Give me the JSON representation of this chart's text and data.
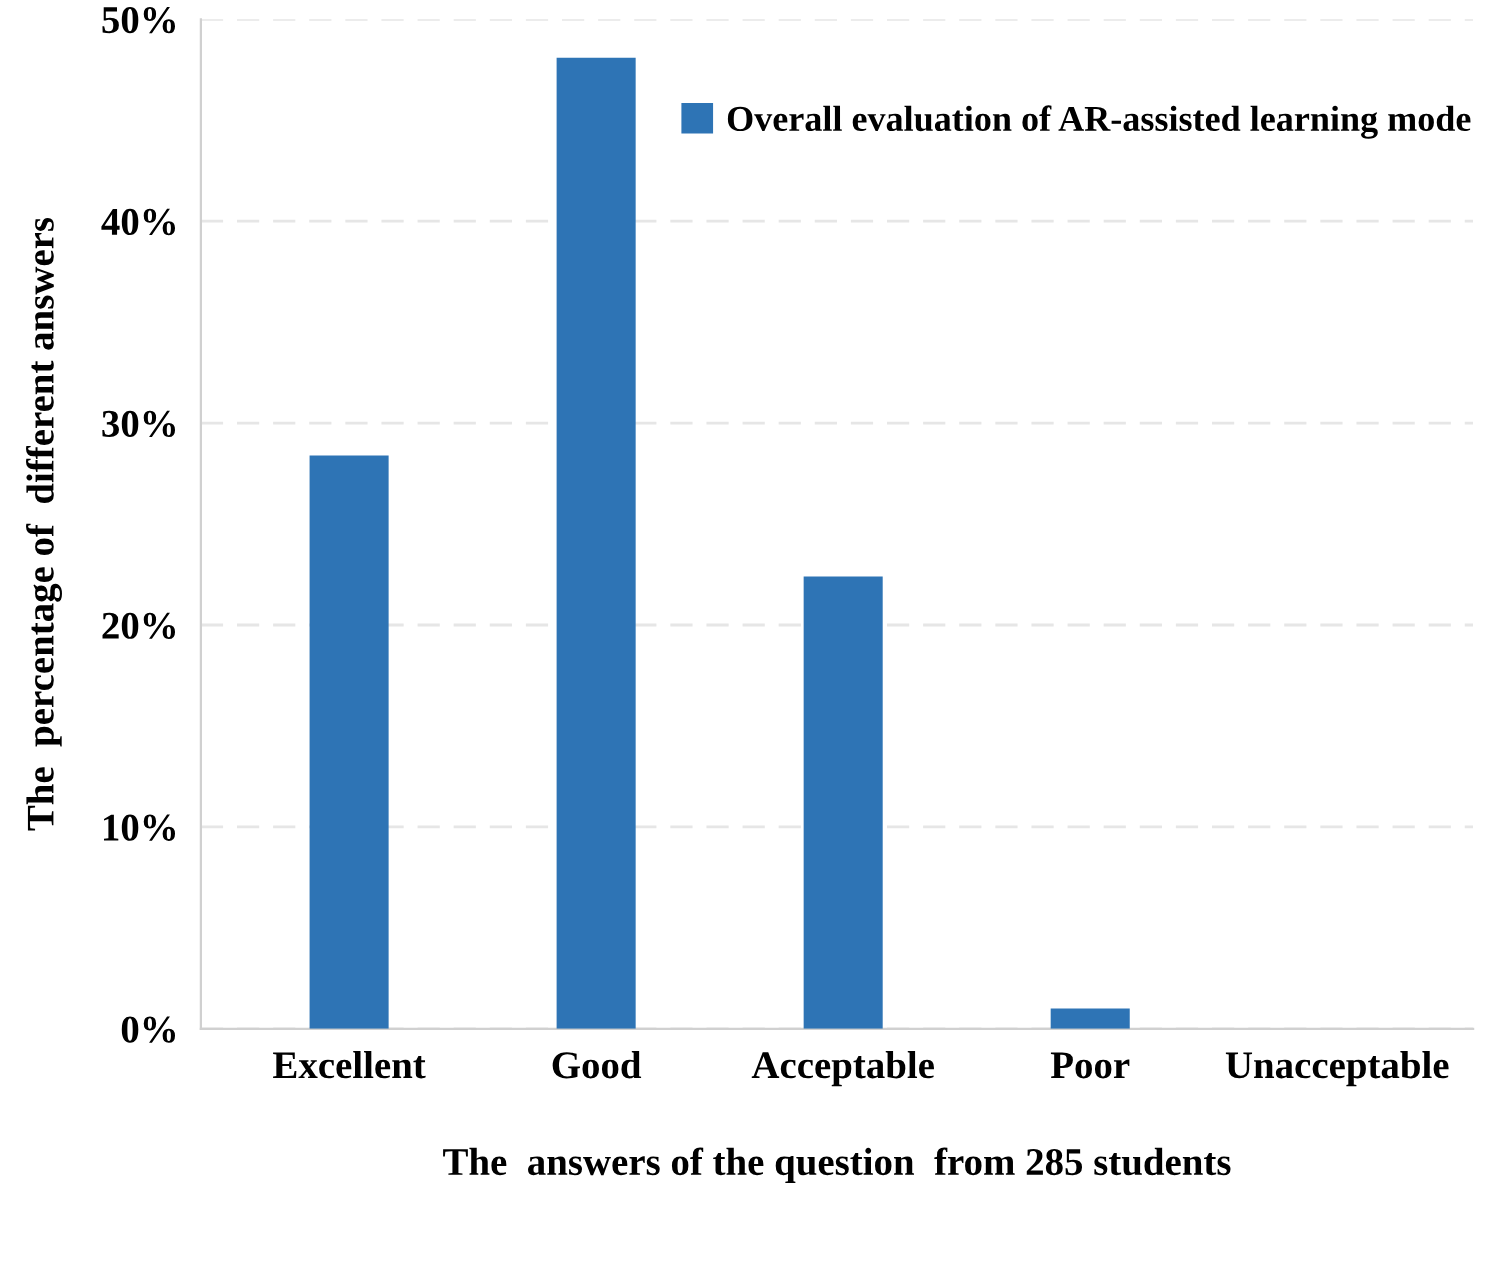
{
  "chart_data": {
    "type": "bar",
    "xlabel": "The  answers of the question  from 285 students",
    "ylabel": "The  percentage of  different answers",
    "categories": [
      "Excellent",
      "Good",
      "Acceptable",
      "Poor",
      "Unacceptable"
    ],
    "series": [
      {
        "name": "Overall evaluation of AR-assisted learning mode",
        "color": "#2e74b5",
        "values": [
          28.4,
          48.1,
          22.4,
          1.0,
          0
        ]
      }
    ],
    "ylim": [
      0,
      50
    ],
    "yticks": [
      {
        "value": 0,
        "label": "0%"
      },
      {
        "value": 10,
        "label": "10%"
      },
      {
        "value": 20,
        "label": "20%"
      },
      {
        "value": 30,
        "label": "30%"
      },
      {
        "value": 40,
        "label": "40%"
      },
      {
        "value": 50,
        "label": "50%"
      }
    ],
    "grid": "y",
    "legend": "top right"
  }
}
